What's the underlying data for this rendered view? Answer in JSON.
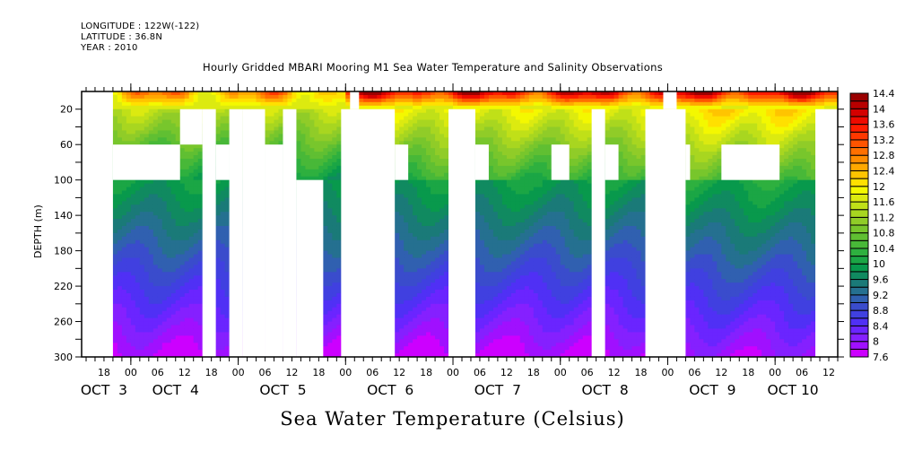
{
  "header": {
    "longitude": "LONGITUDE : 122W(-122)",
    "latitude": "LATITUDE : 36.8N",
    "year": "YEAR : 2010"
  },
  "chart_data": {
    "type": "heatmap",
    "title": "Hourly Gridded MBARI Mooring M1 Sea Water Temperature and Salinity Observations",
    "variable_label": "Sea Water Temperature (Celsius)",
    "ylabel": "DEPTH (m)",
    "xlabel": "",
    "y_axis": {
      "range": [
        0,
        300
      ],
      "inverted": true,
      "ticks": [
        20,
        60,
        100,
        140,
        180,
        220,
        260,
        300
      ]
    },
    "x_axis": {
      "unit": "hours since OCT 3 00:00",
      "range": [
        -11,
        158
      ],
      "hour_ticks": [
        {
          "h": -6,
          "label": "18"
        },
        {
          "h": 0,
          "label": "00"
        },
        {
          "h": 6,
          "label": "06"
        },
        {
          "h": 12,
          "label": "12"
        },
        {
          "h": 18,
          "label": "18"
        },
        {
          "h": 24,
          "label": "00"
        },
        {
          "h": 30,
          "label": "06"
        },
        {
          "h": 36,
          "label": "12"
        },
        {
          "h": 42,
          "label": "18"
        },
        {
          "h": 48,
          "label": "00"
        },
        {
          "h": 54,
          "label": "06"
        },
        {
          "h": 60,
          "label": "12"
        },
        {
          "h": 66,
          "label": "18"
        },
        {
          "h": 72,
          "label": "00"
        },
        {
          "h": 78,
          "label": "06"
        },
        {
          "h": 84,
          "label": "12"
        },
        {
          "h": 90,
          "label": "18"
        },
        {
          "h": 96,
          "label": "00"
        },
        {
          "h": 102,
          "label": "06"
        },
        {
          "h": 108,
          "label": "12"
        },
        {
          "h": 114,
          "label": "18"
        },
        {
          "h": 120,
          "label": "00"
        },
        {
          "h": 126,
          "label": "06"
        },
        {
          "h": 132,
          "label": "12"
        },
        {
          "h": 138,
          "label": "18"
        },
        {
          "h": 144,
          "label": "00"
        },
        {
          "h": 150,
          "label": "06"
        },
        {
          "h": 156,
          "label": "12"
        }
      ],
      "day_labels": [
        {
          "h": -6,
          "label": "OCT  3"
        },
        {
          "h": 10,
          "label": "OCT  4"
        },
        {
          "h": 34,
          "label": "OCT  5"
        },
        {
          "h": 58,
          "label": "OCT  6"
        },
        {
          "h": 82,
          "label": "OCT  7"
        },
        {
          "h": 106,
          "label": "OCT  8"
        },
        {
          "h": 130,
          "label": "OCT  9"
        },
        {
          "h": 148,
          "label": "OCT 10"
        }
      ]
    },
    "colorbar": {
      "levels": [
        7.6,
        7.8,
        8.0,
        8.2,
        8.4,
        8.6,
        8.8,
        9.0,
        9.2,
        9.4,
        9.6,
        9.8,
        10.0,
        10.2,
        10.4,
        10.6,
        10.8,
        11.0,
        11.2,
        11.4,
        11.6,
        11.8,
        12.0,
        12.2,
        12.4,
        12.6,
        12.8,
        13.0,
        13.2,
        13.4,
        13.6,
        13.8,
        14.0,
        14.2,
        14.4
      ],
      "labels": [
        "7.6",
        "8",
        "8.4",
        "8.8",
        "9.2",
        "9.6",
        "10",
        "10.4",
        "10.8",
        "11.2",
        "11.6",
        "12",
        "12.4",
        "12.8",
        "13.2",
        "13.6",
        "14",
        "14.4"
      ],
      "colors": [
        "#cc00ff",
        "#a010ff",
        "#8520ff",
        "#6a25ff",
        "#5030f5",
        "#4040e0",
        "#3a4ccc",
        "#3060b0",
        "#257090",
        "#1a7a78",
        "#108a60",
        "#08994c",
        "#1ba645",
        "#2eb03f",
        "#48b838",
        "#60bf32",
        "#78c62c",
        "#90cc28",
        "#a8d620",
        "#c0e018",
        "#dcea10",
        "#f4f800",
        "#ffe000",
        "#ffc400",
        "#ffa800",
        "#ff8c00",
        "#ff7000",
        "#ff5400",
        "#ff3800",
        "#ff1c00",
        "#ee0a00",
        "#d40000",
        "#b80000",
        "#9a0000"
      ]
    },
    "profile": {
      "description": "Temperature decreases with depth: ~12.5-14.4 near surface, ~10-11 at 60-100 m, ~9.2-9.6 at 180 m, ~7.6-8.2 at 300 m",
      "depths": [
        0,
        10,
        20,
        40,
        60,
        100,
        140,
        180,
        220,
        260,
        300
      ]
    },
    "missing_blocks_hours_depth": [
      {
        "h0": -11,
        "h1": -4,
        "d0": 0,
        "d1": 300
      },
      {
        "h0": -4,
        "h1": 11,
        "d0": 60,
        "d1": 100
      },
      {
        "h0": 11,
        "h1": 16,
        "d0": 20,
        "d1": 60
      },
      {
        "h0": 16,
        "h1": 19,
        "d0": 20,
        "d1": 300
      },
      {
        "h0": 22,
        "h1": 25,
        "d0": 60,
        "d1": 100
      },
      {
        "h0": 19,
        "h1": 22,
        "d0": 60,
        "d1": 100
      },
      {
        "h0": 22,
        "h1": 25,
        "d0": 20,
        "d1": 300
      },
      {
        "h0": 25,
        "h1": 30,
        "d0": 20,
        "d1": 300
      },
      {
        "h0": 30,
        "h1": 34,
        "d0": 60,
        "d1": 300
      },
      {
        "h0": 34,
        "h1": 37,
        "d0": 20,
        "d1": 300
      },
      {
        "h0": 37,
        "h1": 43,
        "d0": 100,
        "d1": 300
      },
      {
        "h0": 49,
        "h1": 51,
        "d0": 0,
        "d1": 20
      },
      {
        "h0": 47,
        "h1": 59,
        "d0": 20,
        "d1": 300
      },
      {
        "h0": 59,
        "h1": 62,
        "d0": 60,
        "d1": 100
      },
      {
        "h0": 71,
        "h1": 77,
        "d0": 20,
        "d1": 300
      },
      {
        "h0": 77,
        "h1": 80,
        "d0": 60,
        "d1": 100
      },
      {
        "h0": 94,
        "h1": 98,
        "d0": 60,
        "d1": 100
      },
      {
        "h0": 103,
        "h1": 106,
        "d0": 20,
        "d1": 300
      },
      {
        "h0": 106,
        "h1": 109,
        "d0": 60,
        "d1": 100
      },
      {
        "h0": 115,
        "h1": 124,
        "d0": 20,
        "d1": 300
      },
      {
        "h0": 119,
        "h1": 122,
        "d0": 0,
        "d1": 20
      },
      {
        "h0": 124,
        "h1": 125,
        "d0": 60,
        "d1": 100
      },
      {
        "h0": 132,
        "h1": 145,
        "d0": 60,
        "d1": 100
      },
      {
        "h0": 153,
        "h1": 158,
        "d0": 20,
        "d1": 300
      }
    ]
  }
}
